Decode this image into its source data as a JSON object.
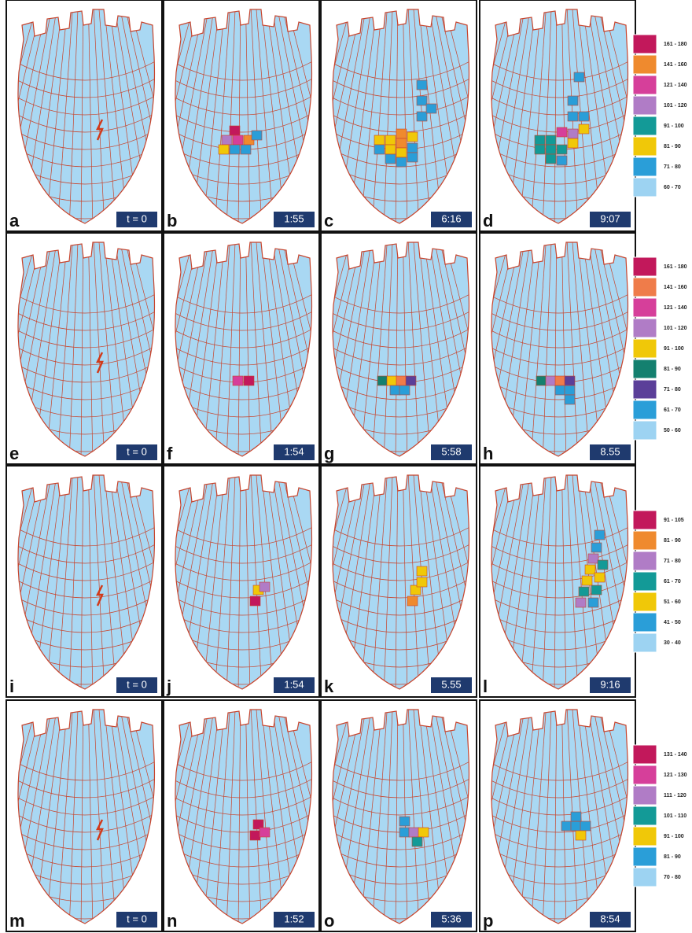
{
  "rows": [
    {
      "panels": [
        {
          "letter": "a",
          "time": "t = 0"
        },
        {
          "letter": "b",
          "time": "1:55"
        },
        {
          "letter": "c",
          "time": "6:16"
        },
        {
          "letter": "d",
          "time": "9:07"
        }
      ],
      "legend": [
        {
          "label": "161 - 180",
          "color": "#c2185b"
        },
        {
          "label": "141 - 160",
          "color": "#ef8a2e"
        },
        {
          "label": "121 - 140",
          "color": "#d63f9a"
        },
        {
          "label": "101 - 120",
          "color": "#b07cc6"
        },
        {
          "label": "91 - 100",
          "color": "#139a97"
        },
        {
          "label": "81 - 90",
          "color": "#f0c808"
        },
        {
          "label": "71 - 80",
          "color": "#2a9ed8"
        },
        {
          "label": "60 - 70",
          "color": "#9dd3f2"
        }
      ]
    },
    {
      "panels": [
        {
          "letter": "e",
          "time": "t = 0"
        },
        {
          "letter": "f",
          "time": "1:54"
        },
        {
          "letter": "g",
          "time": "5:58"
        },
        {
          "letter": "h",
          "time": "8.55"
        }
      ],
      "legend": [
        {
          "label": "161 - 180",
          "color": "#c2185b"
        },
        {
          "label": "141 - 160",
          "color": "#ef7c4a"
        },
        {
          "label": "121 - 140",
          "color": "#d63f9a"
        },
        {
          "label": "101 - 120",
          "color": "#b07cc6"
        },
        {
          "label": "91 - 100",
          "color": "#f0c808"
        },
        {
          "label": "81 - 90",
          "color": "#14806f"
        },
        {
          "label": "71 - 80",
          "color": "#5b3f99"
        },
        {
          "label": "61 - 70",
          "color": "#2a9ed8"
        },
        {
          "label": "50 - 60",
          "color": "#9dd3f2"
        }
      ]
    },
    {
      "panels": [
        {
          "letter": "i",
          "time": "t = 0"
        },
        {
          "letter": "j",
          "time": "1:54"
        },
        {
          "letter": "k",
          "time": "5.55"
        },
        {
          "letter": "l",
          "time": "9:16"
        }
      ],
      "legend": [
        {
          "label": "91 - 105",
          "color": "#c2185b"
        },
        {
          "label": "81 - 90",
          "color": "#ef8a2e"
        },
        {
          "label": "71 - 80",
          "color": "#b07cc6"
        },
        {
          "label": "61 - 70",
          "color": "#139a97"
        },
        {
          "label": "51 - 60",
          "color": "#f0c808"
        },
        {
          "label": "41 - 50",
          "color": "#2a9ed8"
        },
        {
          "label": "30 - 40",
          "color": "#9dd3f2"
        }
      ]
    },
    {
      "panels": [
        {
          "letter": "m",
          "time": "t = 0"
        },
        {
          "letter": "n",
          "time": "1:52"
        },
        {
          "letter": "o",
          "time": "5:36"
        },
        {
          "letter": "p",
          "time": "8:54"
        }
      ],
      "legend": [
        {
          "label": "131 - 140",
          "color": "#c2185b"
        },
        {
          "label": "121 - 130",
          "color": "#d63f9a"
        },
        {
          "label": "111 - 120",
          "color": "#b07cc6"
        },
        {
          "label": "101 - 110",
          "color": "#139a97"
        },
        {
          "label": "91 - 100",
          "color": "#f0c808"
        },
        {
          "label": "81 - 90",
          "color": "#2a9ed8"
        },
        {
          "label": "70 - 80",
          "color": "#9dd3f2"
        }
      ]
    }
  ]
}
